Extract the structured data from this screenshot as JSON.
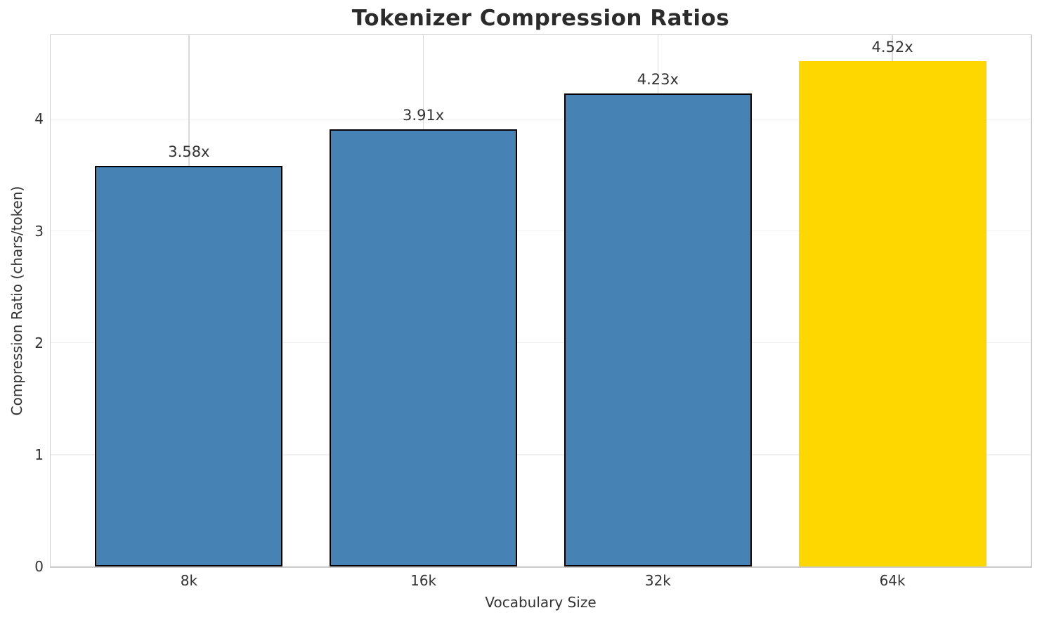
{
  "chart_data": {
    "type": "bar",
    "title": "Tokenizer Compression Ratios",
    "xlabel": "Vocabulary Size",
    "ylabel": "Compression Ratio (chars/token)",
    "categories": [
      "8k",
      "16k",
      "32k",
      "64k"
    ],
    "values": [
      3.58,
      3.91,
      4.23,
      4.52
    ],
    "bar_labels": [
      "3.58x",
      "3.91x",
      "4.23x",
      "4.52x"
    ],
    "bar_colors": [
      "#4682B4",
      "#4682B4",
      "#4682B4",
      "#FFD700"
    ],
    "bar_edge_colors": [
      "#000000",
      "#000000",
      "#000000",
      "none"
    ],
    "highlighted_category": "64k",
    "ylim": [
      0,
      4.75
    ],
    "yticks": [
      0,
      1,
      2,
      3,
      4
    ],
    "grid": true,
    "legend_position": "none"
  },
  "style": {
    "figure_background": "#ffffff",
    "plot_background": "#ffffff",
    "spine_color": "#cdcdcd",
    "h_grid_color": "#f0f0f0",
    "v_grid_color": "#d9d9d9",
    "title_color": "#2b2b2b",
    "text_color": "#333333",
    "accent_bar_color": "#4682B4",
    "highlight_bar_color": "#FFD700"
  }
}
